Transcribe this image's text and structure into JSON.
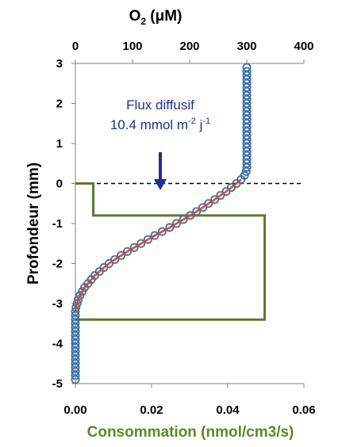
{
  "chart_data": {
    "type": "scatter",
    "top_axis": {
      "label_main": "O",
      "label_sub": "2",
      "label_rest": " (μM)",
      "ticks": [
        "0",
        "100",
        "200",
        "300",
        "400"
      ],
      "range": [
        0,
        400
      ]
    },
    "bottom_axis": {
      "label": "Consommation (nmol/cm3/s)",
      "ticks": [
        "0.00",
        "0.02",
        "0.04",
        "0.06"
      ],
      "range": [
        0,
        0.06
      ]
    },
    "y_axis": {
      "label": "Profondeur (mm)",
      "ticks": [
        "3",
        "2",
        "1",
        "0",
        "-1",
        "-2",
        "-3",
        "-4",
        "-5"
      ],
      "range": [
        -5,
        3
      ]
    },
    "annotation": {
      "line1": "Flux diffusif",
      "line2_prefix": "10.4 mmol m",
      "line2_sup1": "-2",
      "line2_mid": " j",
      "line2_sup2": "-1"
    },
    "colors": {
      "points": "#3e6fa3",
      "fit": "#e0452a",
      "consumption": "#5c7a2c",
      "arrow": "#1f2f8f",
      "green_label": "#5a8a24"
    },
    "interface_depth": 0,
    "consumption_profile": {
      "depth": [
        0,
        0,
        -0.8,
        -0.8,
        -3.4,
        -3.4
      ],
      "rate": [
        0,
        0.0047,
        0.0047,
        0.0497,
        0.0497,
        0
      ]
    },
    "o2_profile": [
      [
        300,
        2.9
      ],
      [
        300,
        2.8
      ],
      [
        300,
        2.7
      ],
      [
        300,
        2.6
      ],
      [
        300,
        2.5
      ],
      [
        300,
        2.4
      ],
      [
        300,
        2.3
      ],
      [
        300,
        2.2
      ],
      [
        300,
        2.1
      ],
      [
        300,
        2.0
      ],
      [
        300,
        1.9
      ],
      [
        300,
        1.8
      ],
      [
        300,
        1.7
      ],
      [
        300,
        1.6
      ],
      [
        300,
        1.5
      ],
      [
        300,
        1.4
      ],
      [
        300,
        1.3
      ],
      [
        300,
        1.2
      ],
      [
        300,
        1.1
      ],
      [
        300,
        1.0
      ],
      [
        300,
        0.9
      ],
      [
        300,
        0.8
      ],
      [
        300,
        0.7
      ],
      [
        300,
        0.6
      ],
      [
        300,
        0.5
      ],
      [
        300,
        0.4
      ],
      [
        299,
        0.3
      ],
      [
        296,
        0.2
      ],
      [
        290,
        0.1
      ],
      [
        282,
        0.0
      ],
      [
        273,
        -0.1
      ],
      [
        264,
        -0.2
      ],
      [
        254,
        -0.3
      ],
      [
        244,
        -0.4
      ],
      [
        233,
        -0.5
      ],
      [
        223,
        -0.6
      ],
      [
        212,
        -0.7
      ],
      [
        201,
        -0.8
      ],
      [
        189,
        -0.9
      ],
      [
        177,
        -1.0
      ],
      [
        165,
        -1.1
      ],
      [
        152,
        -1.2
      ],
      [
        139,
        -1.3
      ],
      [
        127,
        -1.4
      ],
      [
        115,
        -1.5
      ],
      [
        103,
        -1.6
      ],
      [
        91,
        -1.7
      ],
      [
        80,
        -1.8
      ],
      [
        69,
        -1.9
      ],
      [
        59,
        -2.0
      ],
      [
        50,
        -2.1
      ],
      [
        42,
        -2.2
      ],
      [
        34,
        -2.3
      ],
      [
        28,
        -2.4
      ],
      [
        22,
        -2.5
      ],
      [
        16,
        -2.6
      ],
      [
        12,
        -2.7
      ],
      [
        8,
        -2.8
      ],
      [
        5,
        -2.9
      ],
      [
        3,
        -3.0
      ],
      [
        1,
        -3.1
      ],
      [
        0,
        -3.2
      ],
      [
        0,
        -3.3
      ],
      [
        0,
        -3.4
      ],
      [
        0,
        -3.5
      ],
      [
        0,
        -3.6
      ],
      [
        0,
        -3.7
      ],
      [
        0,
        -3.8
      ],
      [
        0,
        -3.9
      ],
      [
        0,
        -4.0
      ],
      [
        0,
        -4.1
      ],
      [
        0,
        -4.2
      ],
      [
        0,
        -4.3
      ],
      [
        0,
        -4.4
      ],
      [
        0,
        -4.5
      ],
      [
        0,
        -4.6
      ],
      [
        0,
        -4.7
      ],
      [
        0,
        -4.8
      ],
      [
        0,
        -4.9
      ]
    ]
  }
}
